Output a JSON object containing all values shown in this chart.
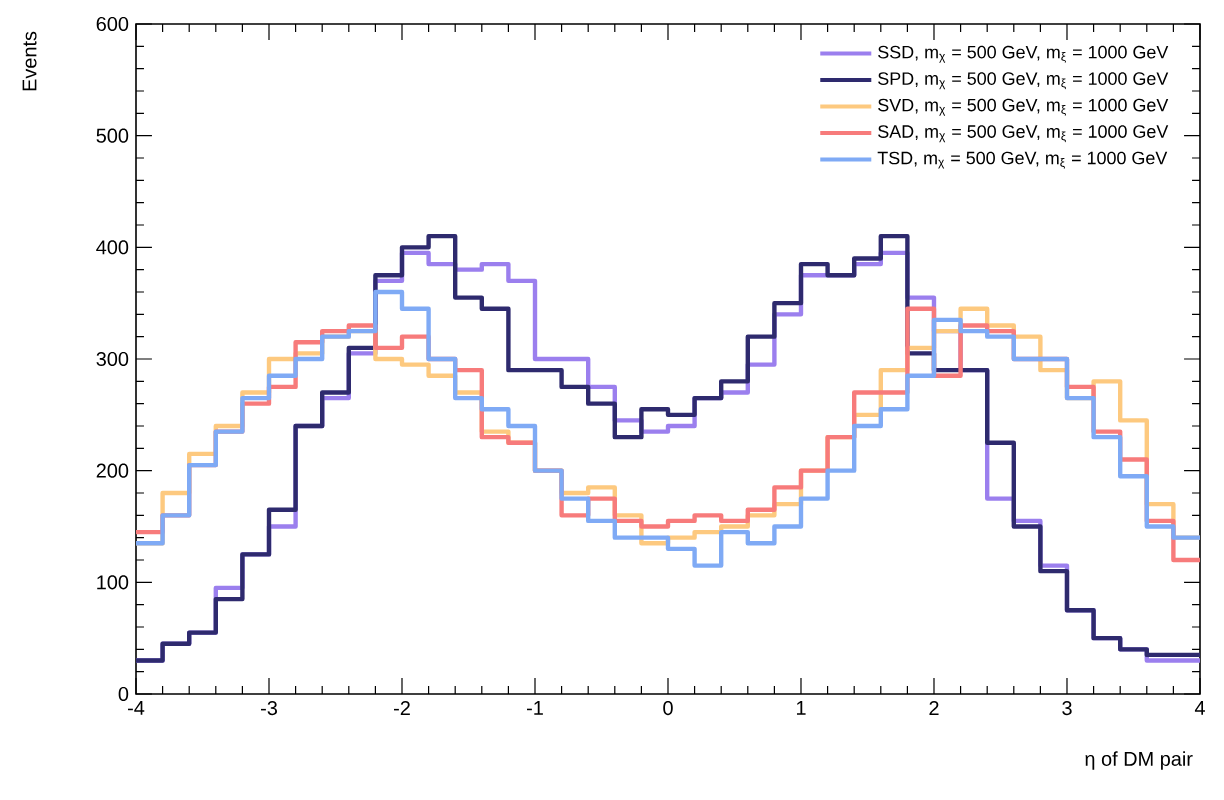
{
  "chart_data": {
    "type": "histogram",
    "xlabel": "η of DM pair",
    "ylabel": "Events",
    "bins": [
      -4.0,
      -3.8,
      -3.6,
      -3.4,
      -3.2,
      -3.0,
      -2.8,
      -2.6,
      -2.4,
      -2.2,
      -2.0,
      -1.8,
      -1.6,
      -1.4,
      -1.2,
      -1.0,
      -0.8,
      -0.6,
      -0.4,
      -0.2,
      0.0,
      0.2,
      0.4,
      0.6,
      0.8,
      1.0,
      1.2,
      1.4,
      1.6,
      1.8,
      2.0,
      2.2,
      2.4,
      2.6,
      2.8,
      3.0,
      3.2,
      3.4,
      3.6,
      3.8,
      4.0
    ],
    "series": [
      {
        "name": "SSD, m$_{χ}$ = 500 GeV, m$_{ξ}$ = 1000 GeV",
        "color": "#9b7fee",
        "values": [
          30,
          45,
          55,
          95,
          125,
          150,
          240,
          265,
          305,
          370,
          395,
          385,
          380,
          385,
          370,
          300,
          300,
          275,
          245,
          235,
          240,
          265,
          270,
          295,
          340,
          375,
          375,
          385,
          395,
          355,
          325,
          290,
          175,
          155,
          115,
          75,
          50,
          40,
          30,
          30
        ]
      },
      {
        "name": "SPD, m$_{χ}$ = 500 GeV, m$_{ξ}$ = 1000 GeV",
        "color": "#2e2a6e",
        "values": [
          30,
          45,
          55,
          85,
          125,
          165,
          240,
          270,
          310,
          375,
          400,
          410,
          355,
          345,
          290,
          290,
          275,
          260,
          230,
          255,
          250,
          265,
          280,
          320,
          350,
          385,
          375,
          390,
          410,
          305,
          290,
          290,
          225,
          150,
          110,
          75,
          50,
          40,
          35,
          35
        ]
      },
      {
        "name": "SVD, m$_{χ}$ = 500 GeV, m$_{ξ}$ = 1000 GeV",
        "color": "#fdc97f",
        "values": [
          135,
          180,
          215,
          240,
          270,
          300,
          305,
          320,
          325,
          300,
          295,
          285,
          270,
          235,
          225,
          200,
          180,
          185,
          160,
          135,
          140,
          145,
          150,
          160,
          170,
          200,
          230,
          250,
          290,
          310,
          325,
          345,
          330,
          320,
          290,
          265,
          280,
          245,
          170,
          140
        ]
      },
      {
        "name": "SAD, m$_{χ}$ = 500 GeV, m$_{ξ}$ = 1000 GeV",
        "color": "#f77b7b",
        "values": [
          145,
          160,
          205,
          235,
          260,
          275,
          315,
          325,
          330,
          310,
          320,
          300,
          290,
          230,
          225,
          200,
          160,
          175,
          155,
          150,
          155,
          160,
          155,
          165,
          185,
          200,
          230,
          270,
          270,
          345,
          285,
          330,
          325,
          300,
          300,
          275,
          235,
          210,
          155,
          120
        ]
      },
      {
        "name": "TSD, m$_{χ}$ = 500 GeV, m$_{ξ}$ = 1000 GeV",
        "color": "#7faaf5",
        "values": [
          135,
          160,
          205,
          235,
          265,
          285,
          300,
          320,
          325,
          360,
          345,
          300,
          265,
          255,
          240,
          200,
          175,
          155,
          140,
          140,
          130,
          115,
          145,
          135,
          150,
          175,
          200,
          240,
          255,
          285,
          335,
          325,
          320,
          300,
          300,
          265,
          230,
          195,
          150,
          140
        ]
      }
    ],
    "xlim": [
      -4,
      4
    ],
    "ylim": [
      0,
      600
    ],
    "xticks": [
      -4,
      -3,
      -2,
      -1,
      0,
      1,
      2,
      3,
      4
    ],
    "yticks": [
      0,
      100,
      200,
      300,
      400,
      500,
      600
    ],
    "legend": "top right",
    "grid": false
  }
}
